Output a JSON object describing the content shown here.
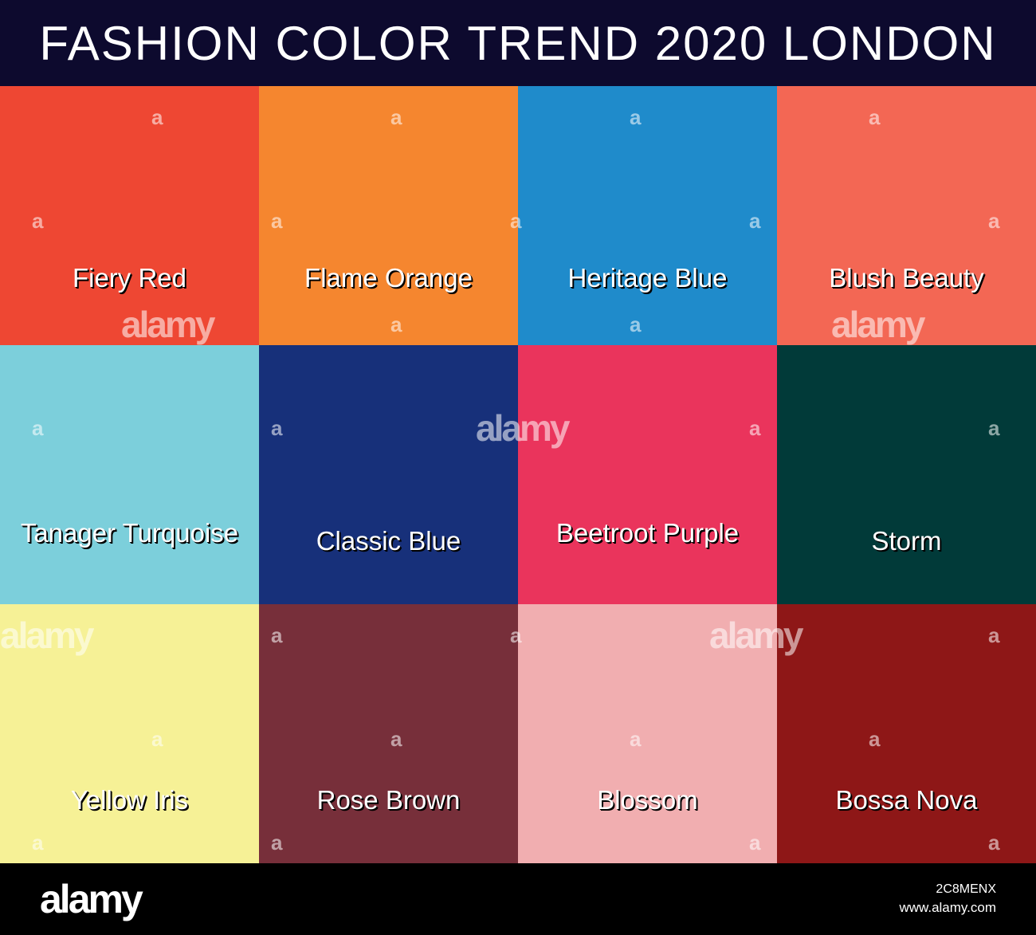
{
  "title": "FASHION COLOR TREND 2020 LONDON",
  "colors": {
    "header_bg": "#0d0a2e",
    "footer_bg": "#000000",
    "label_text": "#ffffff"
  },
  "swatches": [
    {
      "name": "Fiery Red",
      "color": "#ee4733"
    },
    {
      "name": "Flame Orange",
      "color": "#f5862f"
    },
    {
      "name": "Heritage Blue",
      "color": "#1f8bcb"
    },
    {
      "name": "Blush Beauty",
      "color": "#f36754"
    },
    {
      "name": "Tanager Turquoise",
      "color": "#7ccfdb"
    },
    {
      "name": "Classic Blue",
      "color": "#17307a"
    },
    {
      "name": "Beetroot Purple",
      "color": "#ea345c"
    },
    {
      "name": "Storm",
      "color": "#013a39"
    },
    {
      "name": "Yellow Iris",
      "color": "#f6f196"
    },
    {
      "name": "Rose Brown",
      "color": "#772f3a"
    },
    {
      "name": "Blossom",
      "color": "#f1aeb0"
    },
    {
      "name": "Bossa Nova",
      "color": "#8e1717"
    }
  ],
  "watermark": {
    "logo_text": "alamy",
    "small_mark": "a",
    "image_id": "2C8MENX",
    "site": "www.alamy.com"
  }
}
